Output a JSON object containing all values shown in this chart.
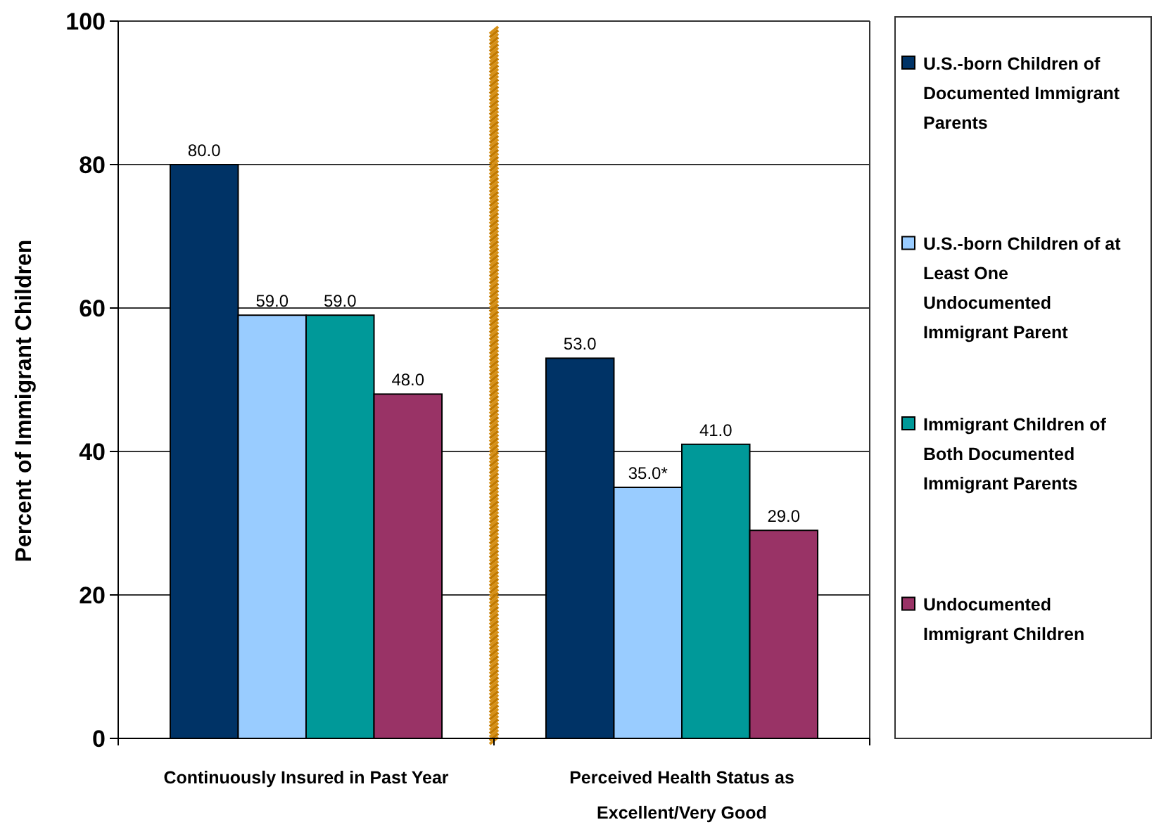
{
  "chart_data": {
    "type": "bar",
    "ylabel": "Percent of Immigrant Children",
    "categories": [
      "Continuously Insured in Past Year",
      "Perceived Health Status as Excellent/Very Good"
    ],
    "series": [
      {
        "name": "U.S.-born Children of Documented Immigrant Parents",
        "color": "#003366",
        "values": [
          80,
          53
        ],
        "value_labels": [
          "80.0",
          "53.0"
        ]
      },
      {
        "name": "U.S.-born Children of at Least One Undocumented Immigrant Parent",
        "color": "#99ccff",
        "values": [
          59,
          35
        ],
        "value_labels": [
          "59.0",
          "35.0*"
        ]
      },
      {
        "name": "Immigrant Children of Both Documented Immigrant Parents",
        "color": "#009999",
        "values": [
          59,
          41
        ],
        "value_labels": [
          "59.0",
          "41.0"
        ]
      },
      {
        "name": "Undocumented Immigrant Children",
        "color": "#993366",
        "values": [
          48,
          29
        ],
        "value_labels": [
          "48.0",
          "29.0"
        ]
      }
    ],
    "ylim": [
      0,
      100
    ],
    "yticks": [
      0,
      20,
      40,
      60,
      80,
      100
    ],
    "grid": "y",
    "legend": "right"
  }
}
